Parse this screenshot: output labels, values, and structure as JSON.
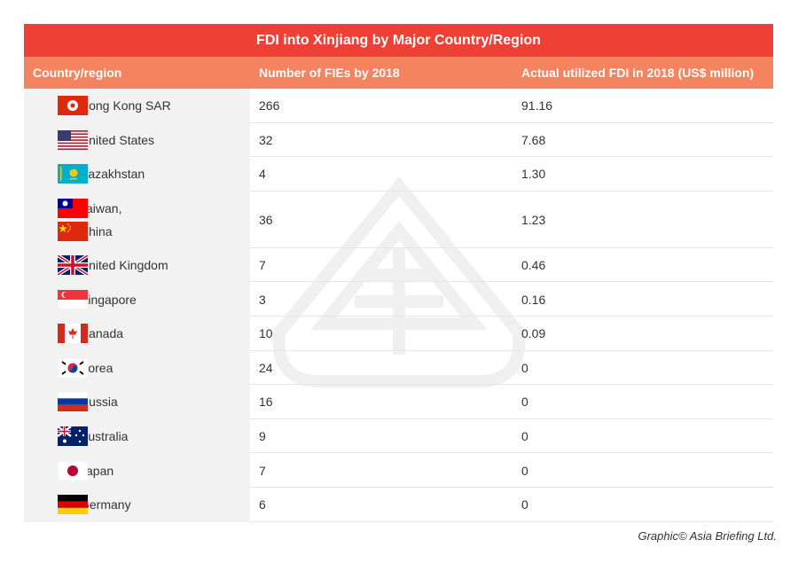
{
  "title": "FDI into Xinjiang by Major Country/Region",
  "table": {
    "header": [
      "Country/region",
      "Number of FIEs by 2018",
      "Actual utilized FDI in 2018 (US$ million)"
    ],
    "rows": [
      [
        [
          "Hong Kong SAR"
        ],
        "266",
        "91.16"
      ],
      [
        [
          "United States"
        ],
        "32",
        "7.68"
      ],
      [
        [
          "Kazakhstan"
        ],
        "4",
        "1.30"
      ],
      [
        [
          "Taiwan,",
          "China"
        ],
        "36",
        "1.23"
      ],
      [
        [
          "United Kingdom"
        ],
        "7",
        "0.46"
      ],
      [
        [
          "Singapore"
        ],
        "3",
        "0.16"
      ],
      [
        [
          "Canada"
        ],
        "10",
        "0.09"
      ],
      [
        [
          "Korea"
        ],
        "24",
        "0"
      ],
      [
        [
          "Russia"
        ],
        "16",
        "0"
      ],
      [
        [
          "Australia"
        ],
        "9",
        "0"
      ],
      [
        [
          "Japan"
        ],
        "7",
        "0"
      ],
      [
        [
          "Germany"
        ],
        "6",
        "0"
      ]
    ]
  },
  "credit": "Graphic© Asia Briefing Ltd."
}
